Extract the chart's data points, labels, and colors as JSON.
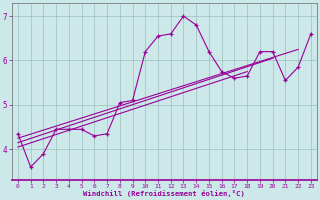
{
  "xlabel": "Windchill (Refroidissement éolien,°C)",
  "background_color": "#cce8e8",
  "line_color": "#990099",
  "xlim": [
    -0.5,
    23.5
  ],
  "ylim": [
    3.3,
    7.3
  ],
  "yticks": [
    4,
    5,
    6,
    7
  ],
  "xticks": [
    0,
    1,
    2,
    3,
    4,
    5,
    6,
    7,
    8,
    9,
    10,
    11,
    12,
    13,
    14,
    15,
    16,
    17,
    18,
    19,
    20,
    21,
    22,
    23
  ],
  "main_x": [
    0,
    1,
    2,
    3,
    4,
    5,
    6,
    7,
    8,
    9,
    10,
    11,
    12,
    13,
    14,
    15,
    16,
    17,
    18,
    19,
    20,
    21,
    22,
    23
  ],
  "main_y": [
    4.35,
    3.6,
    3.9,
    4.45,
    4.45,
    4.45,
    4.3,
    4.35,
    5.05,
    5.1,
    6.2,
    6.55,
    6.6,
    7.0,
    6.8,
    6.2,
    5.75,
    5.6,
    5.65,
    6.2,
    6.2,
    5.55,
    5.85,
    6.6
  ],
  "line1_x": [
    0,
    18
  ],
  "line1_y": [
    4.05,
    5.75
  ],
  "line2_x": [
    0,
    20
  ],
  "line2_y": [
    4.15,
    6.05
  ],
  "line3_x": [
    0,
    22
  ],
  "line3_y": [
    4.25,
    6.25
  ]
}
